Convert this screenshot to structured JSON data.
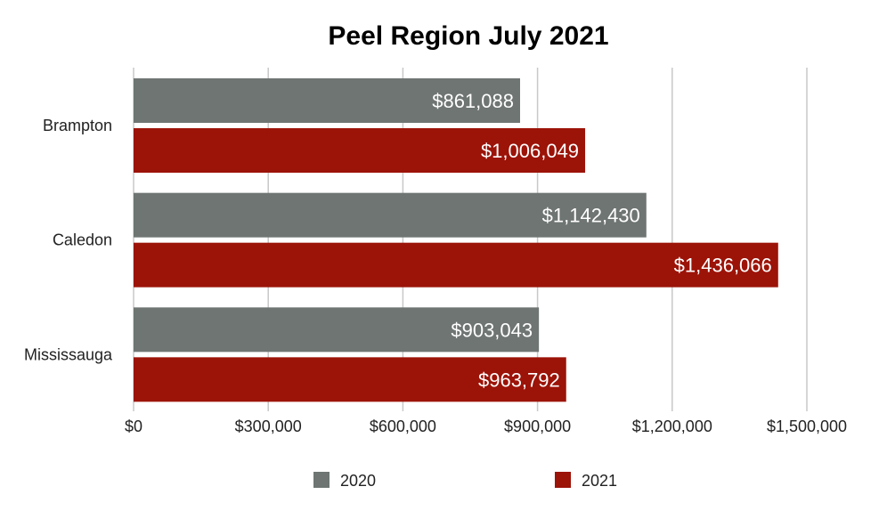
{
  "chart_data": {
    "type": "bar",
    "orientation": "horizontal",
    "title": "Peel Region July 2021",
    "categories": [
      "Brampton",
      "Caledon",
      "Mississauga"
    ],
    "series": [
      {
        "name": "2020",
        "color": "#6e7572",
        "values": [
          861088,
          1142430,
          903043
        ],
        "labels": [
          "$861,088",
          "$1,142,430",
          "$903,043"
        ]
      },
      {
        "name": "2021",
        "color": "#9c1308",
        "values": [
          1006049,
          1436066,
          963792
        ],
        "labels": [
          "$1,006,049",
          "$1,436,066",
          "$963,792"
        ]
      }
    ],
    "xlim": [
      0,
      1500000
    ],
    "xticks": [
      0,
      300000,
      600000,
      900000,
      1200000,
      1500000
    ],
    "xtick_labels": [
      "$0",
      "$300,000",
      "$600,000",
      "$900,000",
      "$1,200,000",
      "$1,500,000"
    ],
    "grid": true,
    "legend_position": "bottom"
  }
}
